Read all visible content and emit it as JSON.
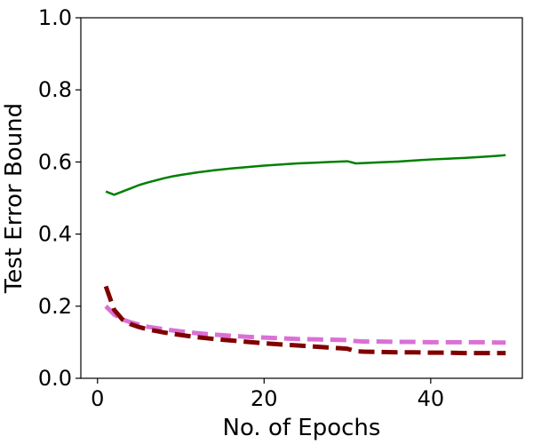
{
  "chart_data": {
    "type": "line",
    "title": "",
    "xlabel": "No. of Epochs",
    "ylabel": "Test Error Bound",
    "xlim": [
      -2,
      51
    ],
    "ylim": [
      0.0,
      1.0
    ],
    "xticks": [
      0,
      20,
      40
    ],
    "yticks": [
      0.0,
      0.2,
      0.4,
      0.6,
      0.8,
      1.0
    ],
    "xtick_labels": [
      "0",
      "20",
      "40"
    ],
    "ytick_labels": [
      "0.0",
      "0.2",
      "0.4",
      "0.6",
      "0.8",
      "1.0"
    ],
    "grid": false,
    "legend": "none",
    "series": [
      {
        "color": "#008000",
        "style": "solid",
        "x": [
          1,
          2,
          3,
          4,
          5,
          6,
          7,
          8,
          9,
          10,
          12,
          14,
          16,
          18,
          20,
          22,
          24,
          26,
          28,
          30,
          31,
          32,
          34,
          36,
          38,
          40,
          42,
          44,
          46,
          48,
          49
        ],
        "y": [
          0.518,
          0.509,
          0.518,
          0.527,
          0.536,
          0.543,
          0.549,
          0.555,
          0.56,
          0.564,
          0.571,
          0.577,
          0.582,
          0.586,
          0.59,
          0.593,
          0.596,
          0.598,
          0.6,
          0.602,
          0.596,
          0.597,
          0.599,
          0.601,
          0.604,
          0.607,
          0.609,
          0.611,
          0.614,
          0.617,
          0.619
        ]
      },
      {
        "color": "#DA70D6",
        "style": "dashed",
        "x": [
          1,
          2,
          3,
          4,
          5,
          6,
          8,
          10,
          12,
          14,
          16,
          18,
          20,
          22,
          24,
          26,
          28,
          30,
          31,
          32,
          34,
          36,
          38,
          40,
          42,
          44,
          46,
          48,
          49
        ],
        "y": [
          0.2,
          0.177,
          0.163,
          0.155,
          0.149,
          0.143,
          0.136,
          0.13,
          0.125,
          0.121,
          0.118,
          0.115,
          0.113,
          0.111,
          0.109,
          0.108,
          0.107,
          0.106,
          0.103,
          0.102,
          0.102,
          0.101,
          0.101,
          0.1,
          0.1,
          0.1,
          0.1,
          0.099,
          0.099
        ]
      },
      {
        "color": "#800000",
        "style": "dashed",
        "x": [
          1,
          2,
          3,
          4,
          5,
          6,
          8,
          10,
          12,
          14,
          16,
          18,
          20,
          22,
          24,
          26,
          28,
          30,
          31,
          32,
          34,
          36,
          38,
          40,
          42,
          44,
          46,
          48,
          49
        ],
        "y": [
          0.255,
          0.19,
          0.163,
          0.15,
          0.142,
          0.136,
          0.127,
          0.12,
          0.114,
          0.109,
          0.105,
          0.101,
          0.097,
          0.094,
          0.091,
          0.088,
          0.085,
          0.082,
          0.075,
          0.074,
          0.073,
          0.072,
          0.072,
          0.071,
          0.071,
          0.07,
          0.07,
          0.07,
          0.07
        ]
      }
    ]
  }
}
